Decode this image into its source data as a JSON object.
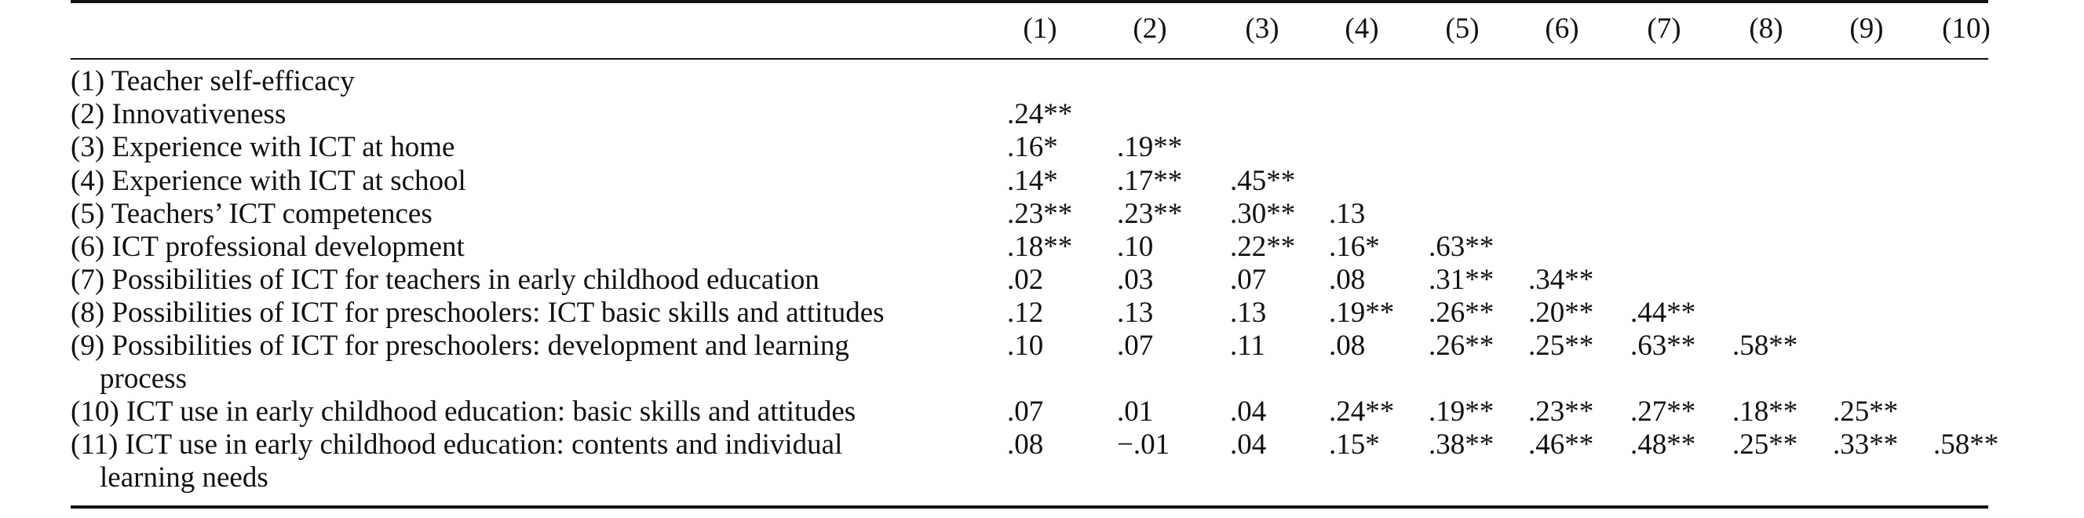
{
  "columns": [
    "(1)",
    "(2)",
    "(3)",
    "(4)",
    "(5)",
    "(6)",
    "(7)",
    "(8)",
    "(9)",
    "(10)"
  ],
  "rows": [
    {
      "label": [
        "(1) Teacher self-efficacy"
      ],
      "values": []
    },
    {
      "label": [
        "(2) Innovativeness"
      ],
      "values": [
        ".24**"
      ]
    },
    {
      "label": [
        "(3) Experience with ICT at home"
      ],
      "values": [
        ".16*",
        ".19**"
      ]
    },
    {
      "label": [
        "(4) Experience with ICT at school"
      ],
      "values": [
        ".14*",
        ".17**",
        ".45**"
      ]
    },
    {
      "label": [
        "(5) Teachers’ ICT competences"
      ],
      "values": [
        ".23**",
        ".23**",
        ".30**",
        ".13"
      ]
    },
    {
      "label": [
        "(6) ICT professional development"
      ],
      "values": [
        ".18**",
        ".10",
        ".22**",
        ".16*",
        ".63**"
      ]
    },
    {
      "label": [
        "(7) Possibilities of ICT for teachers in early childhood education"
      ],
      "values": [
        ".02",
        ".03",
        ".07",
        ".08",
        ".31**",
        ".34**"
      ]
    },
    {
      "label": [
        "(8) Possibilities of ICT for preschoolers: ICT basic skills and attitudes"
      ],
      "values": [
        ".12",
        ".13",
        ".13",
        ".19**",
        ".26**",
        ".20**",
        ".44**"
      ]
    },
    {
      "label": [
        "(9) Possibilities of ICT for preschoolers: development and learning",
        "process"
      ],
      "values": [
        ".10",
        ".07",
        ".11",
        ".08",
        ".26**",
        ".25**",
        ".63**",
        ".58**"
      ]
    },
    {
      "label": [
        "(10) ICT use in early childhood education: basic skills and attitudes"
      ],
      "values": [
        ".07",
        ".01",
        ".04",
        ".24**",
        ".19**",
        ".23**",
        ".27**",
        ".18**",
        ".25**"
      ]
    },
    {
      "label": [
        "(11) ICT use in early childhood education: contents and individual",
        "learning needs"
      ],
      "values": [
        ".08",
        "−.01",
        ".04",
        ".15*",
        ".38**",
        ".46**",
        ".48**",
        ".25**",
        ".33**",
        ".58**"
      ]
    }
  ]
}
